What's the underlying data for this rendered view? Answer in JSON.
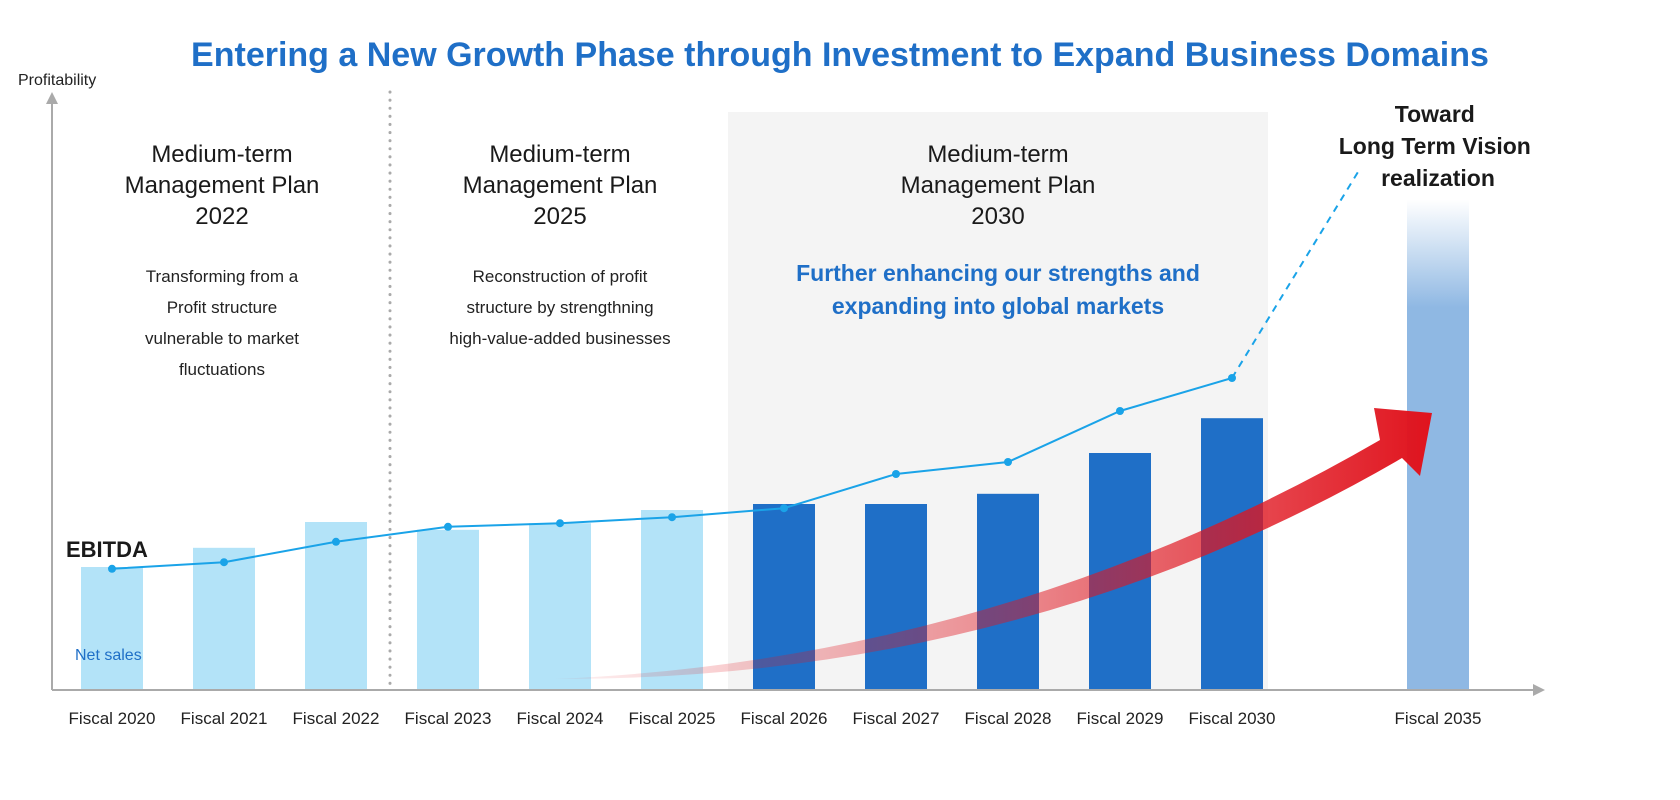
{
  "title": "Entering a New Growth Phase through Investment to Expand Business Domains",
  "chart_data": {
    "type": "bar",
    "title": "Entering a New Growth Phase through Investment to Expand Business Domains",
    "ylabel": "Profitability",
    "xlabel": "",
    "ylim": [
      0,
      100
    ],
    "grid": false,
    "categories": [
      "Fiscal 2020",
      "Fiscal 2021",
      "Fiscal 2022",
      "Fiscal 2023",
      "Fiscal 2024",
      "Fiscal 2025",
      "Fiscal 2026",
      "Fiscal 2027",
      "Fiscal 2028",
      "Fiscal 2029",
      "Fiscal 2030",
      "Fiscal 2035"
    ],
    "series": [
      {
        "name": "Net sales",
        "type": "bar",
        "values": [
          20.5,
          23.7,
          28,
          26.7,
          27.8,
          30,
          31,
          31,
          32.7,
          39.5,
          45.3,
          81.7
        ]
      },
      {
        "name": "EBITDA",
        "type": "line",
        "values": [
          20.2,
          21.3,
          24.7,
          27.2,
          27.8,
          28.8,
          30.3,
          36,
          38,
          46.5,
          52,
          null
        ]
      }
    ],
    "colors": {
      "past_bars": "#b3e3f8",
      "plan_bars": "#1f6fc7",
      "vision_bar": "#8fb8e3",
      "ebitda_line": "#1aa3e8",
      "growth_arrow": "#e0141e",
      "title": "#1f6fc7"
    }
  },
  "phases": [
    {
      "title": [
        "Medium-term",
        "Management Plan",
        "2022"
      ],
      "desc": [
        "Transforming from a",
        "Profit structure",
        "vulnerable to market",
        "fluctuations"
      ]
    },
    {
      "title": [
        "Medium-term",
        "Management Plan",
        "2025"
      ],
      "desc": [
        "Reconstruction of profit",
        "structure by strengthning",
        "high-value-added businesses"
      ]
    },
    {
      "title": [
        "Medium-term",
        "Management Plan",
        "2030"
      ],
      "desc": [
        "Further enhancing our strengths and",
        "expanding into global markets"
      ]
    }
  ],
  "vision": [
    "Toward",
    "Long Term Vision",
    "realization"
  ]
}
